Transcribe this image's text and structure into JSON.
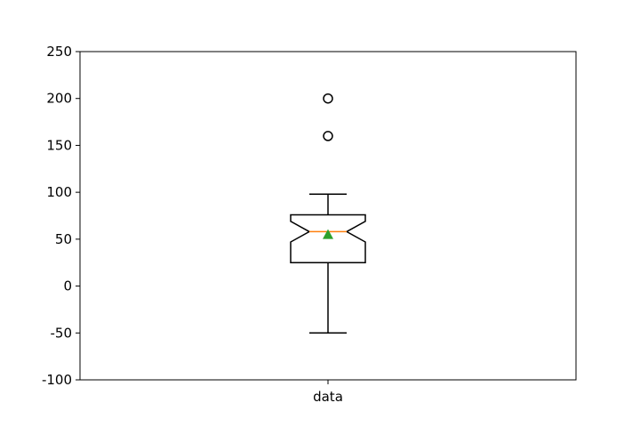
{
  "chart_data": {
    "type": "box",
    "title": "",
    "xlabel": "",
    "ylabel": "",
    "ylim": [
      -100,
      250
    ],
    "yticks": [
      -100,
      -50,
      0,
      50,
      100,
      150,
      200,
      250
    ],
    "categories": [
      "data"
    ],
    "boxes": [
      {
        "name": "data",
        "whisker_low": -50,
        "q1": 25,
        "median": 58,
        "q3": 76,
        "whisker_high": 98,
        "mean": 55,
        "notch_low": 47,
        "notch_high": 69,
        "outliers": [
          160,
          200
        ]
      }
    ],
    "notched": true,
    "show_mean": true,
    "grid": false,
    "colors": {
      "box": "#000000",
      "median": "#ff7f0e",
      "mean": "#2ca02c",
      "outlier": "#000000"
    }
  }
}
